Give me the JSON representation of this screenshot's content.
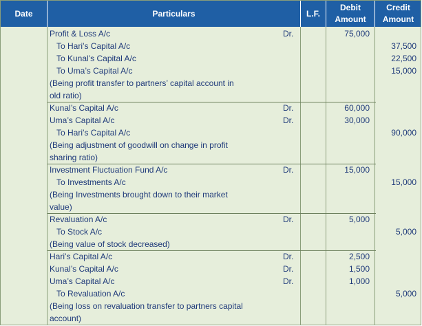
{
  "headers": {
    "date": "Date",
    "particulars": "Particulars",
    "lf": "L.F.",
    "debit_line1": "Debit",
    "debit_line2": "Amount",
    "credit_line1": "Credit",
    "credit_line2": "Amount"
  },
  "entries": [
    {
      "lines": [
        {
          "text": "Profit & Loss A/c",
          "dr": "Dr.",
          "debit": "75,000"
        },
        {
          "text": "To Hari’s Capital A/c",
          "credit": "37,500"
        },
        {
          "text": "To Kunal’s Capital A/c",
          "credit": "22,500"
        },
        {
          "text": "To Uma’s Capital A/c",
          "credit": "15,000"
        }
      ],
      "narration": [
        "(Being profit transfer to partners’ capital account in",
        "old ratio)"
      ]
    },
    {
      "lines": [
        {
          "text": "Kunal’s Capital A/c",
          "dr": "Dr.",
          "debit": "60,000"
        },
        {
          "text": "Uma’s Capital A/c",
          "dr": "Dr.",
          "debit": "30,000"
        },
        {
          "text": "To Hari’s Capital A/c",
          "credit": "90,000"
        }
      ],
      "narration": [
        "(Being adjustment of goodwill on change in profit",
        "sharing ratio)"
      ]
    },
    {
      "lines": [
        {
          "text": "Investment Fluctuation Fund A/c",
          "dr": "Dr.",
          "debit": "15,000"
        },
        {
          "text": "To Investments A/c",
          "credit": "15,000"
        }
      ],
      "narration": [
        "(Being Investments brought down to their market",
        "value)"
      ]
    },
    {
      "lines": [
        {
          "text": "Revaluation A/c",
          "dr": "Dr.",
          "debit": "5,000"
        },
        {
          "text": "To Stock A/c",
          "credit": "5,000"
        }
      ],
      "narration": [
        "(Being value of stock decreased)"
      ]
    },
    {
      "lines": [
        {
          "text": "Hari’s Capital A/c",
          "dr": "Dr.",
          "debit": "2,500"
        },
        {
          "text": "Kunal’s Capital A/c",
          "dr": "Dr.",
          "debit": "1,500"
        },
        {
          "text": "Uma’s Capital A/c",
          "dr": "Dr.",
          "debit": "1,000"
        },
        {
          "text": "To Revaluation A/c",
          "credit": "5,000"
        }
      ],
      "narration": [
        "(Being loss on revaluation transfer to partners capital",
        "account)"
      ]
    }
  ]
}
